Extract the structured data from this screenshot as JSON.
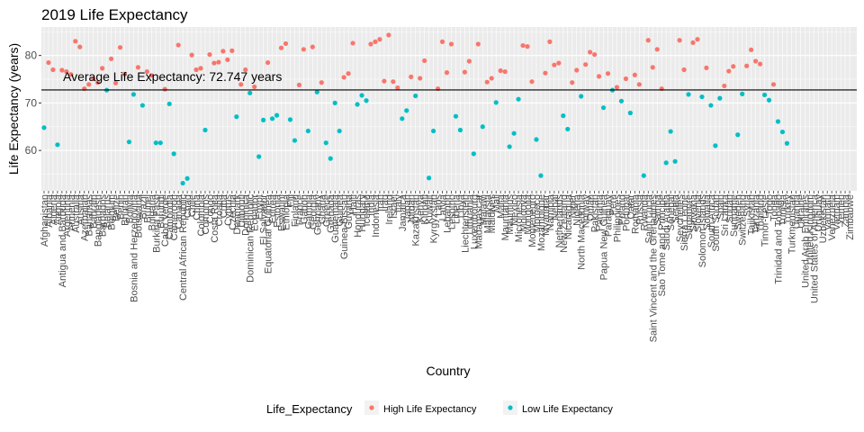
{
  "chart_data": {
    "type": "scatter",
    "title": "2019 Life Expectancy",
    "xlabel": "Country",
    "ylabel": "Life Expectancy (years)",
    "ylim": [
      51.5,
      86
    ],
    "yticks": [
      60,
      70,
      80
    ],
    "grid": true,
    "legend_position": "bottom",
    "legend_title": "Life_Expectancy",
    "reference_line": {
      "y": 72.747,
      "label": "Average Life Expectancy: 72.747 years"
    },
    "series": [
      {
        "name": "High Life Expectancy",
        "color": "#F8766D"
      },
      {
        "name": "Low Life Expectancy",
        "color": "#00BFC4"
      }
    ],
    "categories": [
      "Afghanistan",
      "Albania",
      "Algeria",
      "Angola",
      "Antigua and Barbuda",
      "Argentina",
      "Armenia",
      "Australia",
      "Austria",
      "Azerbaijan",
      "Bahamas",
      "Bahrain",
      "Bangladesh",
      "Barbados",
      "Belarus",
      "Belgium",
      "Belize",
      "Benin",
      "Bhutan",
      "Bolivia",
      "Bosnia and Herzegovina",
      "Botswana",
      "Brazil",
      "Brunei",
      "Bulgaria",
      "Burkina Faso",
      "Burundi",
      "Cabo Verde",
      "Cambodia",
      "Cameroon",
      "Canada",
      "Central African Republic",
      "Chad",
      "Chile",
      "China",
      "Colombia",
      "Comoros",
      "Congo",
      "Costa Rica",
      "Croatia",
      "Cuba",
      "Cyprus",
      "Czechia",
      "Denmark",
      "Djibouti",
      "Dominica",
      "Dominican Republic",
      "Ecuador",
      "Egypt",
      "El Salvador",
      "Equatorial Guinea",
      "Eritrea",
      "Estonia",
      "Eswatini",
      "Ethiopia",
      "Fiji",
      "Finland",
      "France",
      "Gabon",
      "Gambia",
      "Georgia",
      "Germany",
      "Ghana",
      "Greece",
      "Grenada",
      "Guatemala",
      "Guinea",
      "Guinea-Bissau",
      "Guyana",
      "Haiti",
      "Honduras",
      "Hungary",
      "Iceland",
      "India",
      "Indonesia",
      "Iran",
      "Iraq",
      "Ireland",
      "Israel",
      "Italy",
      "Jamaica",
      "Japan",
      "Jordan",
      "Kazakhstan",
      "Kenya",
      "Kiribati",
      "Kuwait",
      "Kyrgyzstan",
      "Laos",
      "Latvia",
      "Lebanon",
      "Lesotho",
      "Liberia",
      "Libya",
      "Liechtenstein",
      "Lithuania",
      "Luxembourg",
      "Madagascar",
      "Malawi",
      "Malaysia",
      "Maldives",
      "Mali",
      "Malta",
      "Mauritania",
      "Mauritius",
      "Mexico",
      "Micronesia",
      "Moldova",
      "Mongolia",
      "Montenegro",
      "Morocco",
      "Mozambique",
      "Myanmar",
      "Namibia",
      "Nepal",
      "Netherlands",
      "New Zealand",
      "Nicaragua",
      "Niger",
      "Nigeria",
      "North Macedonia",
      "Norway",
      "Oman",
      "Pakistan",
      "Panama",
      "Papua New Guinea",
      "Paraguay",
      "Peru",
      "Philippines",
      "Poland",
      "Portugal",
      "Qatar",
      "Romania",
      "Russia",
      "Rwanda",
      "Saint Lucia",
      "Saint Vincent and the Grenadines",
      "Samoa",
      "Sao Tome and Principe",
      "Saudi Arabia",
      "Senegal",
      "Serbia",
      "Seychelles",
      "Sierra Leone",
      "Singapore",
      "Slovakia",
      "Slovenia",
      "Solomon Islands",
      "Somalia",
      "South Africa",
      "South Sudan",
      "Spain",
      "Sri Lanka",
      "Sudan",
      "Suriname",
      "Sweden",
      "Switzerland",
      "Syria",
      "Tajikistan",
      "Tanzania",
      "Thailand",
      "Timor-Leste",
      "Togo",
      "Tonga",
      "Trinidad and Tobago",
      "Tunisia",
      "Turkey",
      "Turkmenistan",
      "Uganda",
      "Ukraine",
      "United Arab Emirates",
      "United Kingdom",
      "United States of America",
      "Uruguay",
      "Uzbekistan",
      "Vanuatu",
      "Venezuela",
      "Vietnam",
      "Yemen",
      "Zambia",
      "Zimbabwe"
    ],
    "points": [
      {
        "i": 0,
        "y": 64.8,
        "s": 1
      },
      {
        "i": 1,
        "y": 78.5,
        "s": 0
      },
      {
        "i": 2,
        "y": 77.0,
        "s": 0
      },
      {
        "i": 3,
        "y": 61.2,
        "s": 1
      },
      {
        "i": 4,
        "y": 76.9,
        "s": 0
      },
      {
        "i": 5,
        "y": 76.6,
        "s": 0
      },
      {
        "i": 6,
        "y": 76.0,
        "s": 0
      },
      {
        "i": 7,
        "y": 83.0,
        "s": 0
      },
      {
        "i": 8,
        "y": 81.8,
        "s": 0
      },
      {
        "i": 9,
        "y": 73.0,
        "s": 0
      },
      {
        "i": 10,
        "y": 73.9,
        "s": 0
      },
      {
        "i": 11,
        "y": 75.1,
        "s": 0
      },
      {
        "i": 12,
        "y": 74.3,
        "s": 0
      },
      {
        "i": 13,
        "y": 77.3,
        "s": 0
      },
      {
        "i": 14,
        "y": 72.7,
        "s": 1
      },
      {
        "i": 15,
        "y": 79.3,
        "s": 0
      },
      {
        "i": 16,
        "y": 74.2,
        "s": 0
      },
      {
        "i": 17,
        "y": 81.7,
        "s": 0
      },
      {
        "i": 18,
        "y": 76.1,
        "s": 0
      },
      {
        "i": 19,
        "y": 61.8,
        "s": 1
      },
      {
        "i": 20,
        "y": 71.8,
        "s": 1
      },
      {
        "i": 21,
        "y": 77.5,
        "s": 0
      },
      {
        "i": 22,
        "y": 69.5,
        "s": 1
      },
      {
        "i": 23,
        "y": 76.6,
        "s": 0
      },
      {
        "i": 24,
        "y": 75.8,
        "s": 0
      },
      {
        "i": 25,
        "y": 61.6,
        "s": 1
      },
      {
        "i": 26,
        "y": 61.6,
        "s": 1
      },
      {
        "i": 27,
        "y": 72.9,
        "s": 0
      },
      {
        "i": 28,
        "y": 69.8,
        "s": 1
      },
      {
        "i": 29,
        "y": 59.3,
        "s": 1
      },
      {
        "i": 30,
        "y": 82.2,
        "s": 0
      },
      {
        "i": 31,
        "y": 53.1,
        "s": 1
      },
      {
        "i": 32,
        "y": 54.1,
        "s": 1
      },
      {
        "i": 33,
        "y": 80.1,
        "s": 0
      },
      {
        "i": 34,
        "y": 77.0,
        "s": 0
      },
      {
        "i": 35,
        "y": 77.3,
        "s": 0
      },
      {
        "i": 36,
        "y": 64.3,
        "s": 1
      },
      {
        "i": 37,
        "y": 80.2,
        "s": 0
      },
      {
        "i": 38,
        "y": 78.4,
        "s": 0
      },
      {
        "i": 39,
        "y": 78.6,
        "s": 0
      },
      {
        "i": 40,
        "y": 80.9,
        "s": 0
      },
      {
        "i": 41,
        "y": 79.1,
        "s": 0
      },
      {
        "i": 42,
        "y": 81.0,
        "s": 0
      },
      {
        "i": 43,
        "y": 67.1,
        "s": 1
      },
      {
        "i": 44,
        "y": 73.9,
        "s": 0
      },
      {
        "i": 45,
        "y": 77.0,
        "s": 0
      },
      {
        "i": 46,
        "y": 72.1,
        "s": 1
      },
      {
        "i": 47,
        "y": 73.4,
        "s": 0
      },
      {
        "i": 48,
        "y": 58.7,
        "s": 1
      },
      {
        "i": 49,
        "y": 66.4,
        "s": 1
      },
      {
        "i": 50,
        "y": 78.5,
        "s": 0
      },
      {
        "i": 51,
        "y": 66.7,
        "s": 1
      },
      {
        "i": 52,
        "y": 67.4,
        "s": 1
      },
      {
        "i": 53,
        "y": 81.6,
        "s": 0
      },
      {
        "i": 54,
        "y": 82.5,
        "s": 0
      },
      {
        "i": 55,
        "y": 66.5,
        "s": 1
      },
      {
        "i": 56,
        "y": 62.1,
        "s": 1
      },
      {
        "i": 57,
        "y": 73.8,
        "s": 0
      },
      {
        "i": 58,
        "y": 81.3,
        "s": 0
      },
      {
        "i": 59,
        "y": 64.1,
        "s": 1
      },
      {
        "i": 60,
        "y": 81.8,
        "s": 0
      },
      {
        "i": 61,
        "y": 72.3,
        "s": 1
      },
      {
        "i": 62,
        "y": 74.3,
        "s": 0
      },
      {
        "i": 63,
        "y": 61.6,
        "s": 1
      },
      {
        "i": 64,
        "y": 58.3,
        "s": 1
      },
      {
        "i": 65,
        "y": 70.0,
        "s": 1
      },
      {
        "i": 66,
        "y": 64.1,
        "s": 1
      },
      {
        "i": 67,
        "y": 75.4,
        "s": 0
      },
      {
        "i": 68,
        "y": 76.2,
        "s": 0
      },
      {
        "i": 69,
        "y": 82.6,
        "s": 0
      },
      {
        "i": 70,
        "y": 69.7,
        "s": 1
      },
      {
        "i": 71,
        "y": 71.6,
        "s": 1
      },
      {
        "i": 72,
        "y": 70.5,
        "s": 1
      },
      {
        "i": 73,
        "y": 82.4,
        "s": 0
      },
      {
        "i": 74,
        "y": 82.9,
        "s": 0
      },
      {
        "i": 75,
        "y": 83.4,
        "s": 0
      },
      {
        "i": 76,
        "y": 74.6,
        "s": 0
      },
      {
        "i": 77,
        "y": 84.3,
        "s": 0
      },
      {
        "i": 78,
        "y": 74.5,
        "s": 0
      },
      {
        "i": 79,
        "y": 73.2,
        "s": 0
      },
      {
        "i": 80,
        "y": 66.7,
        "s": 1
      },
      {
        "i": 81,
        "y": 68.4,
        "s": 1
      },
      {
        "i": 82,
        "y": 75.5,
        "s": 0
      },
      {
        "i": 83,
        "y": 71.5,
        "s": 1
      },
      {
        "i": 84,
        "y": 75.2,
        "s": 0
      },
      {
        "i": 85,
        "y": 78.9,
        "s": 0
      },
      {
        "i": 86,
        "y": 54.2,
        "s": 1
      },
      {
        "i": 87,
        "y": 64.1,
        "s": 1
      },
      {
        "i": 88,
        "y": 73.0,
        "s": 0
      },
      {
        "i": 89,
        "y": 82.9,
        "s": 0
      },
      {
        "i": 90,
        "y": 76.4,
        "s": 0
      },
      {
        "i": 91,
        "y": 82.4,
        "s": 0
      },
      {
        "i": 92,
        "y": 67.2,
        "s": 1
      },
      {
        "i": 93,
        "y": 64.3,
        "s": 1
      },
      {
        "i": 94,
        "y": 76.5,
        "s": 0
      },
      {
        "i": 95,
        "y": 78.8,
        "s": 0
      },
      {
        "i": 96,
        "y": 59.3,
        "s": 1
      },
      {
        "i": 97,
        "y": 82.4,
        "s": 0
      },
      {
        "i": 98,
        "y": 65.0,
        "s": 1
      },
      {
        "i": 99,
        "y": 74.4,
        "s": 0
      },
      {
        "i": 100,
        "y": 75.2,
        "s": 0
      },
      {
        "i": 101,
        "y": 70.1,
        "s": 1
      },
      {
        "i": 102,
        "y": 76.8,
        "s": 0
      },
      {
        "i": 103,
        "y": 76.6,
        "s": 0
      },
      {
        "i": 104,
        "y": 60.8,
        "s": 1
      },
      {
        "i": 105,
        "y": 63.6,
        "s": 1
      },
      {
        "i": 106,
        "y": 70.8,
        "s": 1
      },
      {
        "i": 107,
        "y": 82.1,
        "s": 0
      },
      {
        "i": 108,
        "y": 81.9,
        "s": 0
      },
      {
        "i": 109,
        "y": 74.5,
        "s": 0
      },
      {
        "i": 110,
        "y": 62.3,
        "s": 1
      },
      {
        "i": 111,
        "y": 54.7,
        "s": 1
      },
      {
        "i": 112,
        "y": 76.3,
        "s": 0
      },
      {
        "i": 113,
        "y": 82.9,
        "s": 0
      },
      {
        "i": 114,
        "y": 78.0,
        "s": 0
      },
      {
        "i": 115,
        "y": 78.4,
        "s": 0
      },
      {
        "i": 116,
        "y": 67.3,
        "s": 1
      },
      {
        "i": 117,
        "y": 64.5,
        "s": 1
      },
      {
        "i": 118,
        "y": 74.3,
        "s": 0
      },
      {
        "i": 119,
        "y": 76.9,
        "s": 0
      },
      {
        "i": 120,
        "y": 71.4,
        "s": 1
      },
      {
        "i": 121,
        "y": 78.1,
        "s": 0
      },
      {
        "i": 122,
        "y": 80.7,
        "s": 0
      },
      {
        "i": 123,
        "y": 80.2,
        "s": 0
      },
      {
        "i": 124,
        "y": 75.6,
        "s": 0
      },
      {
        "i": 125,
        "y": 69.0,
        "s": 1
      },
      {
        "i": 126,
        "y": 76.2,
        "s": 0
      },
      {
        "i": 127,
        "y": 72.7,
        "s": 1
      },
      {
        "i": 128,
        "y": 73.3,
        "s": 0
      },
      {
        "i": 129,
        "y": 70.4,
        "s": 1
      },
      {
        "i": 130,
        "y": 75.1,
        "s": 0
      },
      {
        "i": 131,
        "y": 67.9,
        "s": 1
      },
      {
        "i": 132,
        "y": 75.9,
        "s": 0
      },
      {
        "i": 133,
        "y": 73.9,
        "s": 0
      },
      {
        "i": 134,
        "y": 54.7,
        "s": 1
      },
      {
        "i": 135,
        "y": 83.2,
        "s": 0
      },
      {
        "i": 136,
        "y": 77.5,
        "s": 0
      },
      {
        "i": 137,
        "y": 81.3,
        "s": 0
      },
      {
        "i": 138,
        "y": 73.0,
        "s": 0
      },
      {
        "i": 139,
        "y": 57.4,
        "s": 1
      },
      {
        "i": 140,
        "y": 64.0,
        "s": 1
      },
      {
        "i": 141,
        "y": 57.7,
        "s": 1
      },
      {
        "i": 142,
        "y": 83.2,
        "s": 0
      },
      {
        "i": 143,
        "y": 77.0,
        "s": 0
      },
      {
        "i": 144,
        "y": 71.8,
        "s": 1
      },
      {
        "i": 145,
        "y": 82.7,
        "s": 0
      },
      {
        "i": 146,
        "y": 83.4,
        "s": 0
      },
      {
        "i": 147,
        "y": 71.3,
        "s": 1
      },
      {
        "i": 148,
        "y": 77.4,
        "s": 0
      },
      {
        "i": 149,
        "y": 69.5,
        "s": 1
      },
      {
        "i": 150,
        "y": 61.0,
        "s": 1
      },
      {
        "i": 151,
        "y": 71.0,
        "s": 1
      },
      {
        "i": 152,
        "y": 73.6,
        "s": 0
      },
      {
        "i": 153,
        "y": 76.7,
        "s": 0
      },
      {
        "i": 154,
        "y": 77.7,
        "s": 0
      },
      {
        "i": 155,
        "y": 63.3,
        "s": 1
      },
      {
        "i": 156,
        "y": 71.9,
        "s": 1
      },
      {
        "i": 157,
        "y": 77.8,
        "s": 0
      },
      {
        "i": 158,
        "y": 81.2,
        "s": 0
      },
      {
        "i": 159,
        "y": 78.8,
        "s": 0
      },
      {
        "i": 160,
        "y": 78.2,
        "s": 0
      },
      {
        "i": 161,
        "y": 71.7,
        "s": 1
      },
      {
        "i": 162,
        "y": 70.6,
        "s": 1
      },
      {
        "i": 163,
        "y": 73.9,
        "s": 0
      },
      {
        "i": 164,
        "y": 66.1,
        "s": 1
      },
      {
        "i": 165,
        "y": 63.9,
        "s": 1
      },
      {
        "i": 166,
        "y": 61.5,
        "s": 1
      }
    ]
  }
}
